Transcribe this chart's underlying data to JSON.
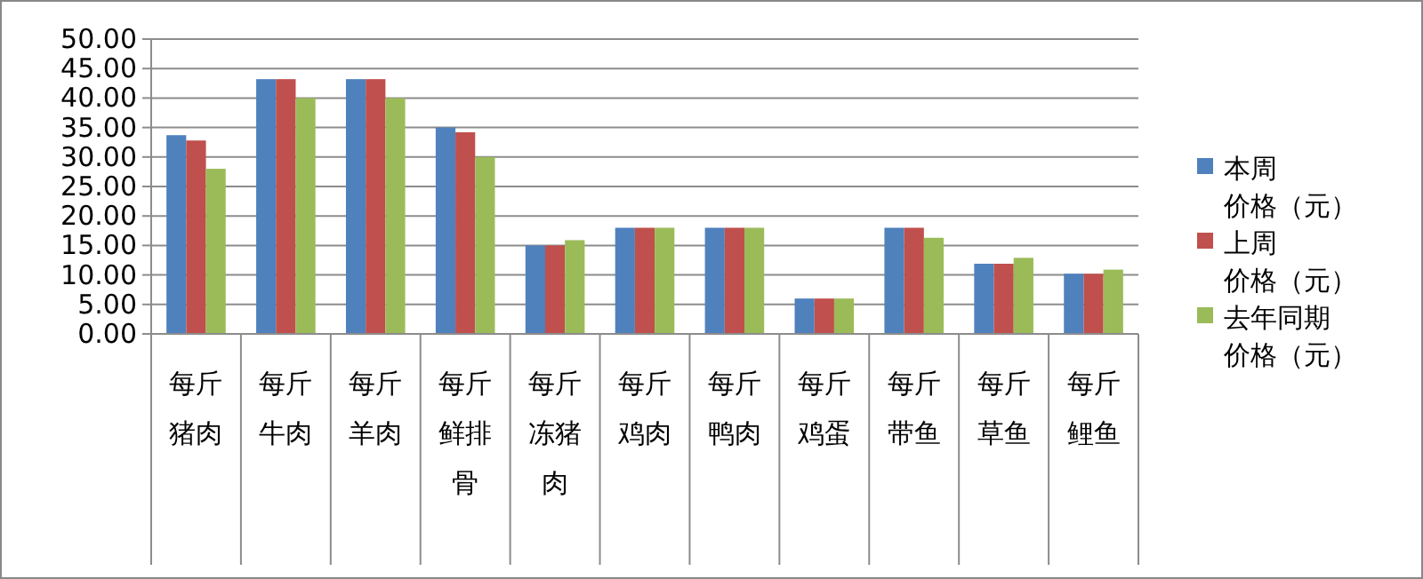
{
  "chart_data": {
    "type": "bar",
    "categories": [
      "每斤猪肉",
      "每斤牛肉",
      "每斤羊肉",
      "每斤鲜排骨",
      "每斤冻猪肉",
      "每斤鸡肉",
      "每斤鸭肉",
      "每斤鸡蛋",
      "每斤带鱼",
      "每斤草鱼",
      "每斤鲤鱼"
    ],
    "series": [
      {
        "name": "本周价格（元）",
        "color": "#4f81bd",
        "values": [
          33.7,
          43.2,
          43.2,
          35.0,
          15.0,
          18.0,
          18.0,
          6.0,
          18.0,
          11.9,
          10.2
        ]
      },
      {
        "name": "上周价格（元）",
        "color": "#c0504d",
        "values": [
          32.8,
          43.2,
          43.2,
          34.2,
          15.0,
          18.0,
          18.0,
          6.0,
          18.0,
          11.9,
          10.2
        ]
      },
      {
        "name": "去年同期价格（元）",
        "color": "#9bbb59",
        "values": [
          28.0,
          40.0,
          40.0,
          30.0,
          15.9,
          18.0,
          18.0,
          6.0,
          16.3,
          12.9,
          10.9
        ]
      }
    ],
    "ylim": [
      0,
      50
    ],
    "yticks": [
      {
        "value": 0,
        "label": "0.00"
      },
      {
        "value": 5,
        "label": "5.00"
      },
      {
        "value": 10,
        "label": "10.00"
      },
      {
        "value": 15,
        "label": "15.00"
      },
      {
        "value": 20,
        "label": "20.00"
      },
      {
        "value": 25,
        "label": "25.00"
      },
      {
        "value": 30,
        "label": "30.00"
      },
      {
        "value": 35,
        "label": "35.00"
      },
      {
        "value": 40,
        "label": "40.00"
      },
      {
        "value": 45,
        "label": "45.00"
      },
      {
        "value": 50,
        "label": "50.00"
      }
    ],
    "grid": "y",
    "legend": "right"
  }
}
